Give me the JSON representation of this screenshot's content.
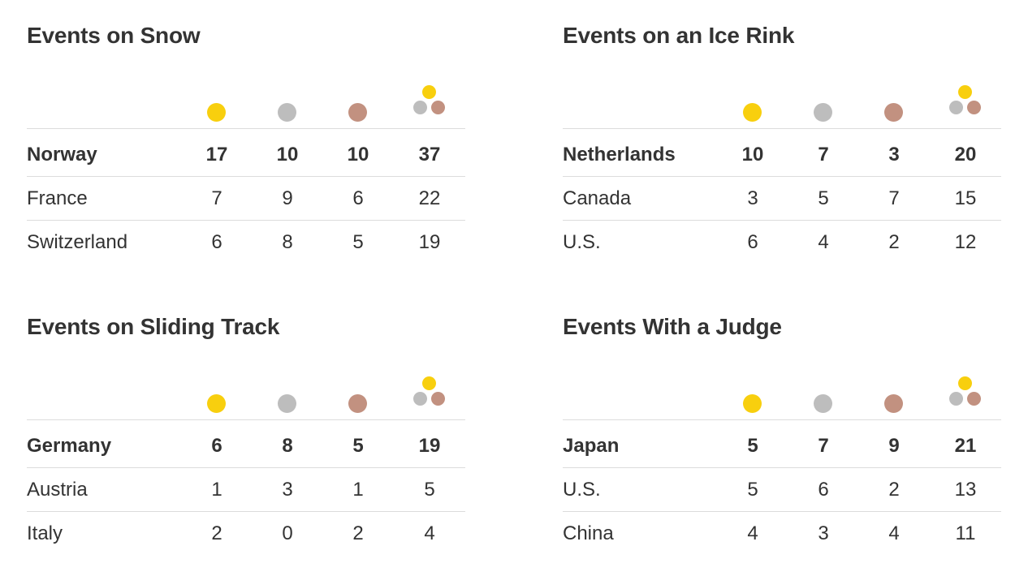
{
  "chart_data": [
    {
      "type": "table",
      "title": "Events on Snow",
      "columns": [
        "gold",
        "silver",
        "bronze",
        "total"
      ],
      "rows": [
        {
          "country": "Norway",
          "gold": 17,
          "silver": 10,
          "bronze": 10,
          "total": 37
        },
        {
          "country": "France",
          "gold": 7,
          "silver": 9,
          "bronze": 6,
          "total": 22
        },
        {
          "country": "Switzerland",
          "gold": 6,
          "silver": 8,
          "bronze": 5,
          "total": 19
        }
      ]
    },
    {
      "type": "table",
      "title": "Events on an Ice Rink",
      "columns": [
        "gold",
        "silver",
        "bronze",
        "total"
      ],
      "rows": [
        {
          "country": "Netherlands",
          "gold": 10,
          "silver": 7,
          "bronze": 3,
          "total": 20
        },
        {
          "country": "Canada",
          "gold": 3,
          "silver": 5,
          "bronze": 7,
          "total": 15
        },
        {
          "country": "U.S.",
          "gold": 6,
          "silver": 4,
          "bronze": 2,
          "total": 12
        }
      ]
    },
    {
      "type": "table",
      "title": "Events on Sliding Track",
      "columns": [
        "gold",
        "silver",
        "bronze",
        "total"
      ],
      "rows": [
        {
          "country": "Germany",
          "gold": 6,
          "silver": 8,
          "bronze": 5,
          "total": 19
        },
        {
          "country": "Austria",
          "gold": 1,
          "silver": 3,
          "bronze": 1,
          "total": 5
        },
        {
          "country": "Italy",
          "gold": 2,
          "silver": 0,
          "bronze": 2,
          "total": 4
        }
      ]
    },
    {
      "type": "table",
      "title": "Events With a Judge",
      "columns": [
        "gold",
        "silver",
        "bronze",
        "total"
      ],
      "rows": [
        {
          "country": "Japan",
          "gold": 5,
          "silver": 7,
          "bronze": 9,
          "total": 21
        },
        {
          "country": "U.S.",
          "gold": 5,
          "silver": 6,
          "bronze": 2,
          "total": 13
        },
        {
          "country": "China",
          "gold": 4,
          "silver": 3,
          "bronze": 4,
          "total": 11
        }
      ]
    }
  ],
  "colors": {
    "gold": "#f8cf0e",
    "silver": "#bdbdbd",
    "bronze": "#c29180",
    "text": "#333333",
    "rule": "#dcdcdc"
  },
  "icons": {
    "gold": "gold-medal-icon",
    "silver": "silver-medal-icon",
    "bronze": "bronze-medal-icon",
    "total": "total-medals-icon"
  }
}
